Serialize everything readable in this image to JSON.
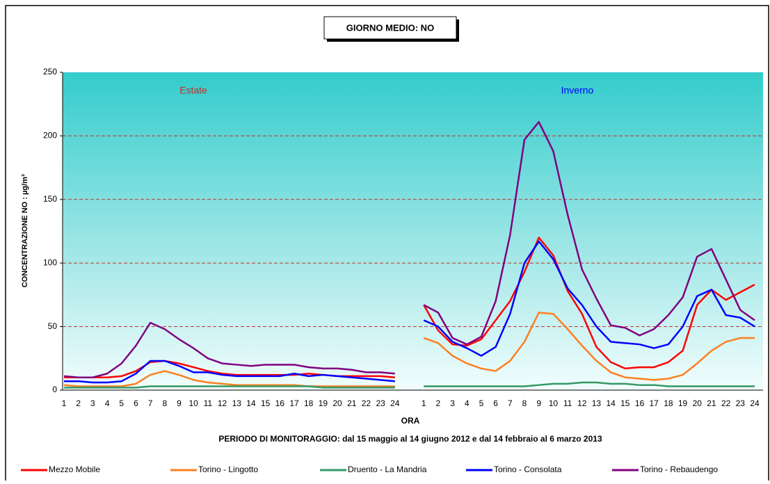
{
  "chart_data": {
    "type": "line",
    "title": "GIORNO MEDIO: NO",
    "y_label": "CONCENTRAZIONE NO :  µg/m³",
    "x_label": "ORA",
    "subtitle": "PERIODO DI MONITORAGGIO: dal 15 maggio al 14 giugno 2012 e dal 14 febbraio al 6 marzo 2013",
    "annotations": [
      "Estate",
      "Inverno"
    ],
    "categories": [
      1,
      2,
      3,
      4,
      5,
      6,
      7,
      8,
      9,
      10,
      11,
      12,
      13,
      14,
      15,
      16,
      17,
      18,
      19,
      20,
      21,
      22,
      23,
      24,
      null,
      1,
      2,
      3,
      4,
      5,
      6,
      7,
      8,
      9,
      10,
      11,
      12,
      13,
      14,
      15,
      16,
      17,
      18,
      19,
      20,
      21,
      22,
      23,
      24
    ],
    "ylim": [
      0,
      250
    ],
    "yticks": [
      0,
      50,
      100,
      150,
      200,
      250
    ],
    "grid": true,
    "legend": "bottom",
    "series": [
      {
        "name": "Mezzo Mobile",
        "color": "#ff0000",
        "values": [
          10,
          10,
          10,
          10,
          11,
          15,
          22,
          23,
          21,
          18,
          15,
          13,
          12,
          12,
          12,
          12,
          12,
          13,
          12,
          11,
          11,
          11,
          11,
          10,
          null,
          67,
          47,
          36,
          35,
          40,
          55,
          70,
          93,
          120,
          106,
          78,
          60,
          34,
          22,
          17,
          18,
          18,
          22,
          31,
          67,
          79,
          71,
          77,
          83
        ]
      },
      {
        "name": "Torino - Lingotto",
        "color": "#ff7f1f",
        "values": [
          4,
          3,
          3,
          3,
          3,
          5,
          12,
          15,
          12,
          8,
          6,
          5,
          4,
          4,
          4,
          4,
          4,
          3,
          3,
          3,
          3,
          3,
          3,
          3,
          null,
          41,
          37,
          27,
          21,
          17,
          15,
          23,
          38,
          61,
          60,
          48,
          35,
          23,
          14,
          10,
          9,
          8,
          9,
          12,
          21,
          31,
          38,
          41,
          41
        ]
      },
      {
        "name": "Druento - La Mandria",
        "color": "#339966",
        "values": [
          2,
          2,
          2,
          2,
          2,
          2,
          3,
          3,
          3,
          3,
          3,
          3,
          3,
          3,
          3,
          3,
          3,
          3,
          2,
          2,
          2,
          2,
          2,
          2,
          null,
          3,
          3,
          3,
          3,
          3,
          3,
          3,
          3,
          4,
          5,
          5,
          6,
          6,
          5,
          5,
          4,
          4,
          3,
          3,
          3,
          3,
          3,
          3,
          3
        ]
      },
      {
        "name": "Torino - Consolata",
        "color": "#0000ff",
        "values": [
          7,
          7,
          6,
          6,
          7,
          13,
          23,
          23,
          19,
          14,
          14,
          12,
          11,
          11,
          11,
          11,
          13,
          11,
          12,
          11,
          10,
          9,
          8,
          7,
          null,
          55,
          50,
          38,
          33,
          27,
          34,
          60,
          100,
          117,
          103,
          80,
          67,
          50,
          38,
          37,
          36,
          33,
          36,
          50,
          74,
          79,
          59,
          57,
          50
        ]
      },
      {
        "name": "Torino - Rebaudengo",
        "color": "#800080",
        "values": [
          11,
          10,
          10,
          13,
          21,
          35,
          53,
          48,
          40,
          33,
          25,
          21,
          20,
          19,
          20,
          20,
          20,
          18,
          17,
          17,
          16,
          14,
          14,
          13,
          null,
          67,
          61,
          41,
          36,
          42,
          70,
          122,
          197,
          211,
          188,
          138,
          95,
          72,
          51,
          49,
          43,
          48,
          59,
          73,
          105,
          111,
          87,
          63,
          55
        ]
      }
    ]
  }
}
